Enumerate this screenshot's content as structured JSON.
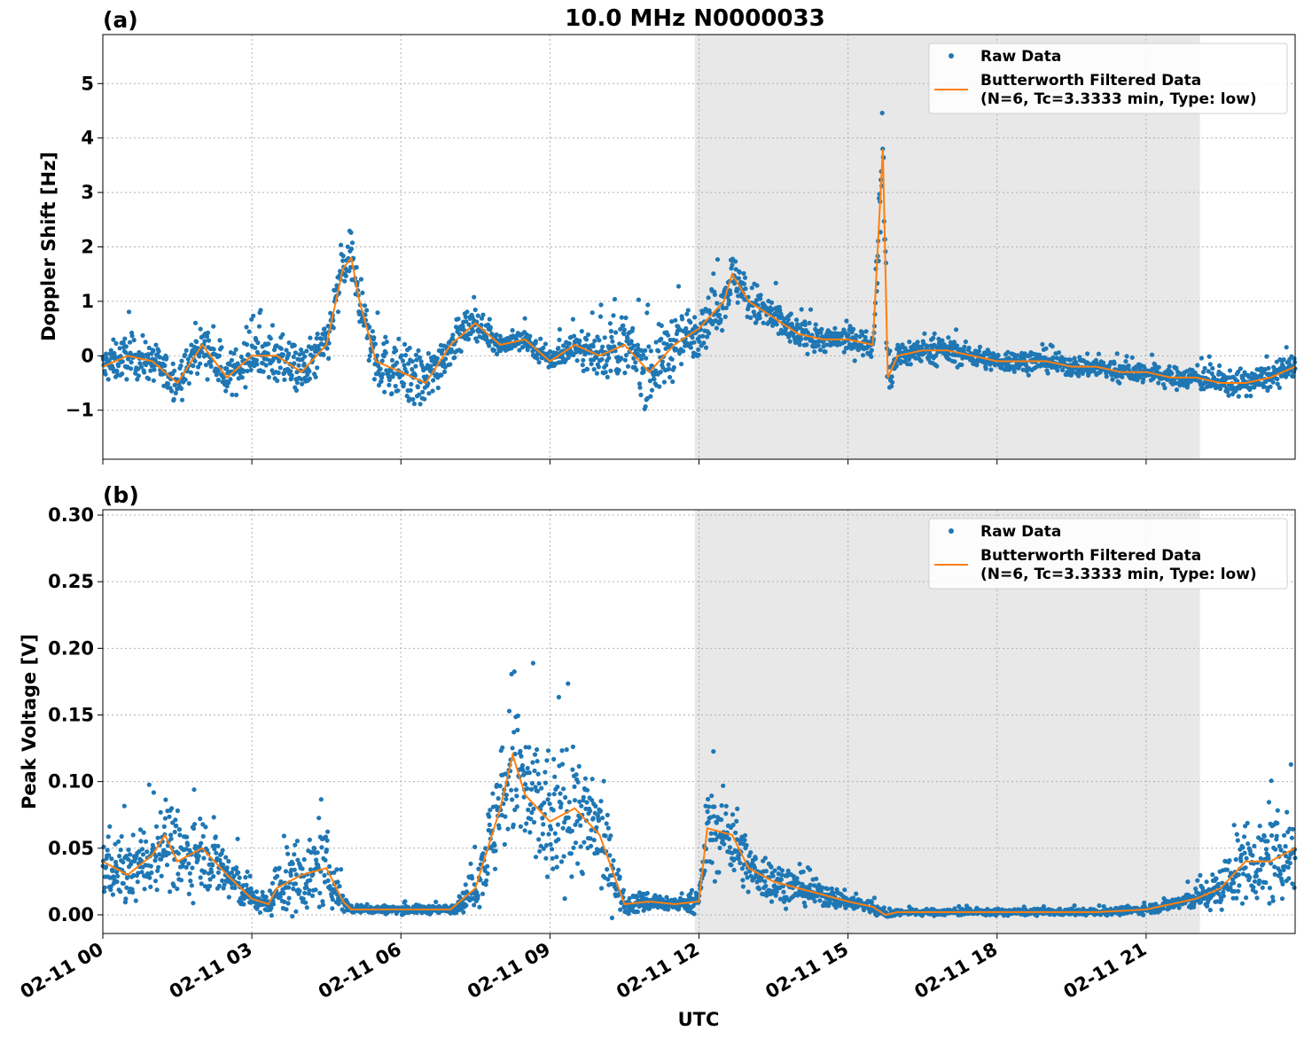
{
  "figure": {
    "title": "10.0 MHz N0000033",
    "xlabel": "UTC",
    "colors": {
      "raw": "#1f77b4",
      "filtered": "#ff7f0e",
      "shade": "#e8e8e8",
      "grid": "#b0b0b0"
    }
  },
  "chart_data": [
    {
      "type": "scatter",
      "panel_label": "(a)",
      "ylabel": "Doppler Shift [Hz]",
      "xlim": [
        "02-11 00:00",
        "02-12 00:00"
      ],
      "ylim": [
        -1.9,
        5.9
      ],
      "yticks": [
        -1,
        0,
        1,
        2,
        3,
        4,
        5
      ],
      "ytick_labels": [
        "−1",
        "0",
        "1",
        "2",
        "3",
        "4",
        "5"
      ],
      "xticks": [
        "02-11 00",
        "02-11 03",
        "02-11 06",
        "02-11 09",
        "02-11 12",
        "02-11 15",
        "02-11 18",
        "02-11 21"
      ],
      "grid": true,
      "shaded_span": [
        "02-11 11:55",
        "02-11 22:05"
      ],
      "legend": {
        "position": "top-right",
        "entries": [
          "Raw Data",
          "Butterworth Filtered Data",
          "(N=6, Tc=3.3333 min, Type: low)"
        ]
      },
      "series": [
        {
          "name": "Raw Data",
          "style": "points",
          "x": [
            "00:00",
            "00:30",
            "01:00",
            "01:30",
            "02:00",
            "02:30",
            "03:00",
            "03:30",
            "04:00",
            "04:30",
            "04:50",
            "05:00",
            "05:10",
            "05:30",
            "06:00",
            "06:30",
            "07:00",
            "07:30",
            "08:00",
            "08:30",
            "09:00",
            "09:30",
            "10:00",
            "10:30",
            "11:00",
            "11:30",
            "12:00",
            "12:30",
            "12:40",
            "13:00",
            "13:30",
            "14:00",
            "14:30",
            "15:00",
            "15:30",
            "15:42",
            "15:48",
            "16:00",
            "16:30",
            "17:00",
            "17:30",
            "18:00",
            "18:30",
            "19:00",
            "19:30",
            "20:00",
            "20:30",
            "21:00",
            "21:30",
            "22:00",
            "22:30",
            "23:00",
            "23:30",
            "24:00"
          ],
          "y": [
            -0.2,
            0.0,
            -0.1,
            -0.5,
            0.2,
            -0.4,
            0.0,
            0.0,
            -0.3,
            0.2,
            1.6,
            1.8,
            1.0,
            -0.1,
            -0.3,
            -0.5,
            0.2,
            0.6,
            0.2,
            0.3,
            -0.1,
            0.2,
            0.0,
            0.2,
            -0.3,
            0.2,
            0.5,
            1.0,
            1.5,
            1.0,
            0.7,
            0.4,
            0.3,
            0.3,
            0.2,
            3.8,
            -0.4,
            0.0,
            0.1,
            0.1,
            0.0,
            -0.1,
            -0.1,
            -0.1,
            -0.2,
            -0.2,
            -0.3,
            -0.3,
            -0.4,
            -0.4,
            -0.5,
            -0.5,
            -0.4,
            -0.2
          ],
          "spread": [
            0.45,
            0.5,
            0.45,
            0.45,
            0.45,
            0.45,
            0.5,
            0.55,
            0.6,
            0.55,
            0.6,
            0.55,
            0.6,
            0.7,
            0.7,
            0.7,
            0.45,
            0.35,
            0.25,
            0.25,
            0.25,
            0.35,
            0.55,
            0.75,
            0.8,
            0.75,
            0.6,
            0.55,
            0.55,
            0.55,
            0.45,
            0.35,
            0.3,
            0.3,
            0.3,
            1.2,
            0.7,
            0.35,
            0.3,
            0.3,
            0.25,
            0.25,
            0.25,
            0.25,
            0.25,
            0.25,
            0.25,
            0.25,
            0.25,
            0.25,
            0.3,
            0.3,
            0.3,
            0.3
          ]
        },
        {
          "name": "Butterworth Filtered Data",
          "style": "line",
          "x": [
            "00:00",
            "00:30",
            "01:00",
            "01:30",
            "02:00",
            "02:30",
            "03:00",
            "03:30",
            "04:00",
            "04:30",
            "04:50",
            "05:00",
            "05:10",
            "05:30",
            "06:00",
            "06:30",
            "07:00",
            "07:30",
            "08:00",
            "08:30",
            "09:00",
            "09:30",
            "10:00",
            "10:30",
            "11:00",
            "11:30",
            "12:00",
            "12:30",
            "12:40",
            "13:00",
            "13:30",
            "14:00",
            "14:30",
            "15:00",
            "15:30",
            "15:42",
            "15:48",
            "16:00",
            "16:30",
            "17:00",
            "17:30",
            "18:00",
            "18:30",
            "19:00",
            "19:30",
            "20:00",
            "20:30",
            "21:00",
            "21:30",
            "22:00",
            "22:30",
            "23:00",
            "23:30",
            "24:00"
          ],
          "y": [
            -0.2,
            0.0,
            -0.1,
            -0.5,
            0.2,
            -0.4,
            0.0,
            0.0,
            -0.3,
            0.2,
            1.6,
            1.8,
            1.0,
            -0.1,
            -0.3,
            -0.5,
            0.2,
            0.6,
            0.2,
            0.3,
            -0.1,
            0.2,
            0.0,
            0.2,
            -0.3,
            0.2,
            0.5,
            1.0,
            1.5,
            1.0,
            0.7,
            0.4,
            0.3,
            0.3,
            0.2,
            3.8,
            -0.4,
            0.0,
            0.1,
            0.1,
            0.0,
            -0.1,
            -0.1,
            -0.1,
            -0.2,
            -0.2,
            -0.3,
            -0.3,
            -0.4,
            -0.4,
            -0.5,
            -0.5,
            -0.4,
            -0.2
          ]
        }
      ]
    },
    {
      "type": "scatter",
      "panel_label": "(b)",
      "ylabel": "Peak Voltage [V]",
      "xlim": [
        "02-11 00:00",
        "02-12 00:00"
      ],
      "ylim": [
        -0.014,
        0.304
      ],
      "yticks": [
        0.0,
        0.05,
        0.1,
        0.15,
        0.2,
        0.25,
        0.3
      ],
      "ytick_labels": [
        "0.00",
        "0.05",
        "0.10",
        "0.15",
        "0.20",
        "0.25",
        "0.30"
      ],
      "xticks": [
        "02-11 00",
        "02-11 03",
        "02-11 06",
        "02-11 09",
        "02-11 12",
        "02-11 15",
        "02-11 18",
        "02-11 21"
      ],
      "grid": true,
      "shaded_span": [
        "02-11 11:55",
        "02-11 22:05"
      ],
      "legend": {
        "position": "top-right",
        "entries": [
          "Raw Data",
          "Butterworth Filtered Data",
          "(N=6, Tc=3.3333 min, Type: low)"
        ]
      },
      "series": [
        {
          "name": "Raw Data",
          "style": "points",
          "x": [
            "00:00",
            "00:30",
            "01:00",
            "01:15",
            "01:30",
            "02:00",
            "02:30",
            "03:00",
            "03:20",
            "03:30",
            "04:00",
            "04:30",
            "04:50",
            "05:00",
            "06:00",
            "07:00",
            "07:30",
            "08:00",
            "08:15",
            "08:30",
            "09:00",
            "09:30",
            "10:00",
            "10:30",
            "11:00",
            "11:30",
            "12:00",
            "12:10",
            "12:40",
            "13:00",
            "13:30",
            "14:00",
            "14:30",
            "15:00",
            "15:30",
            "15:45",
            "16:00",
            "17:00",
            "18:00",
            "19:00",
            "20:00",
            "21:00",
            "21:30",
            "22:00",
            "22:30",
            "23:00",
            "23:30",
            "24:00"
          ],
          "y": [
            0.04,
            0.03,
            0.045,
            0.06,
            0.04,
            0.05,
            0.03,
            0.012,
            0.008,
            0.02,
            0.03,
            0.035,
            0.01,
            0.004,
            0.004,
            0.004,
            0.02,
            0.08,
            0.12,
            0.09,
            0.07,
            0.08,
            0.06,
            0.008,
            0.01,
            0.008,
            0.01,
            0.065,
            0.06,
            0.035,
            0.025,
            0.02,
            0.015,
            0.01,
            0.006,
            0.0,
            0.002,
            0.002,
            0.002,
            0.002,
            0.002,
            0.004,
            0.008,
            0.012,
            0.02,
            0.04,
            0.04,
            0.05
          ],
          "spread": [
            0.035,
            0.03,
            0.035,
            0.04,
            0.04,
            0.035,
            0.03,
            0.01,
            0.01,
            0.025,
            0.035,
            0.035,
            0.01,
            0.004,
            0.004,
            0.004,
            0.02,
            0.06,
            0.09,
            0.07,
            0.07,
            0.06,
            0.05,
            0.01,
            0.01,
            0.006,
            0.01,
            0.04,
            0.04,
            0.025,
            0.02,
            0.015,
            0.012,
            0.008,
            0.006,
            0.004,
            0.003,
            0.003,
            0.003,
            0.003,
            0.003,
            0.004,
            0.006,
            0.01,
            0.02,
            0.035,
            0.04,
            0.04
          ]
        },
        {
          "name": "Butterworth Filtered Data",
          "style": "line",
          "x": [
            "00:00",
            "00:30",
            "01:00",
            "01:15",
            "01:30",
            "02:00",
            "02:30",
            "03:00",
            "03:20",
            "03:30",
            "04:00",
            "04:30",
            "04:50",
            "05:00",
            "06:00",
            "07:00",
            "07:30",
            "08:00",
            "08:15",
            "08:30",
            "09:00",
            "09:30",
            "10:00",
            "10:30",
            "11:00",
            "11:30",
            "12:00",
            "12:10",
            "12:40",
            "13:00",
            "13:30",
            "14:00",
            "14:30",
            "15:00",
            "15:30",
            "15:45",
            "16:00",
            "17:00",
            "18:00",
            "19:00",
            "20:00",
            "21:00",
            "21:30",
            "22:00",
            "22:30",
            "23:00",
            "23:30",
            "24:00"
          ],
          "y": [
            0.04,
            0.03,
            0.045,
            0.06,
            0.04,
            0.05,
            0.03,
            0.012,
            0.008,
            0.02,
            0.03,
            0.035,
            0.01,
            0.004,
            0.004,
            0.004,
            0.02,
            0.08,
            0.12,
            0.09,
            0.07,
            0.08,
            0.06,
            0.008,
            0.01,
            0.008,
            0.01,
            0.065,
            0.06,
            0.035,
            0.025,
            0.02,
            0.015,
            0.01,
            0.006,
            0.0,
            0.002,
            0.002,
            0.002,
            0.002,
            0.002,
            0.004,
            0.008,
            0.012,
            0.02,
            0.04,
            0.04,
            0.05
          ]
        }
      ]
    }
  ]
}
